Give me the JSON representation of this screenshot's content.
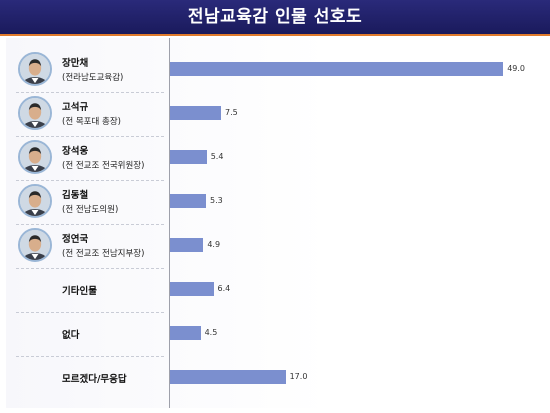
{
  "title": "전남교육감 인물 선호도",
  "colors": {
    "header": "#1f1f66",
    "accent": "#e07b2c",
    "bar": "#7b8fcf"
  },
  "rows": [
    {
      "name": "장만채",
      "role": "(전라남도교육감)",
      "photo": "portrait-photo"
    },
    {
      "name": "고석규",
      "role": "(전 목포대 총장)",
      "photo": "portrait-photo"
    },
    {
      "name": "장석웅",
      "role": "(전 전교조 전국위원장)",
      "photo": "portrait-photo"
    },
    {
      "name": "김동철",
      "role": "(전 전남도의원)",
      "photo": "portrait-photo"
    },
    {
      "name": "정연국",
      "role": "(전 전교조 전남지부장)",
      "photo": "portrait-photo"
    },
    {
      "name": "기타인물",
      "role": ""
    },
    {
      "name": "없다",
      "role": ""
    },
    {
      "name": "모르겠다/무응답",
      "role": ""
    }
  ],
  "chart_data": {
    "type": "bar",
    "orientation": "horizontal",
    "categories": [
      "장만채",
      "고석규",
      "장석웅",
      "김동철",
      "정연국",
      "기타인물",
      "없다",
      "모르겠다/무응답"
    ],
    "values": [
      49.0,
      7.5,
      5.4,
      5.3,
      4.9,
      6.4,
      4.5,
      17.0
    ],
    "value_labels": [
      "49.0",
      "7.5",
      "5.4",
      "5.3",
      "4.9",
      "6.4",
      "4.5",
      "17.0"
    ],
    "title": "전남교육감 인물 선호도",
    "xlim": [
      0,
      50
    ],
    "grid": false
  }
}
